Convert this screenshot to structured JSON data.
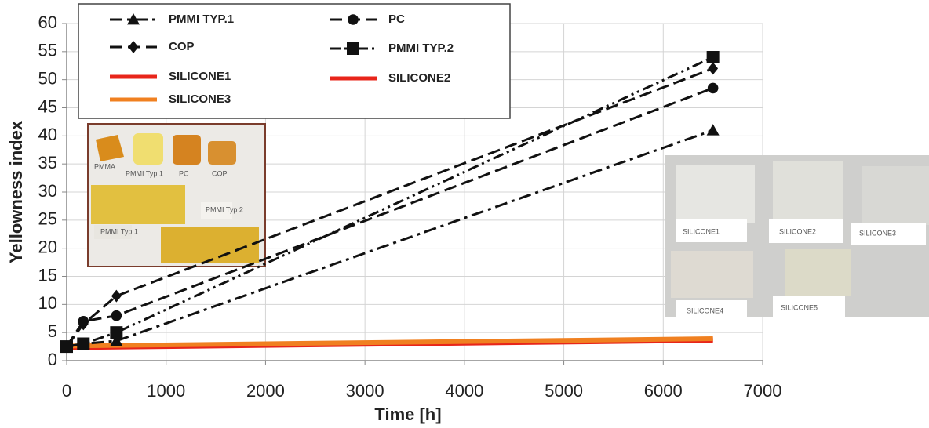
{
  "chart_data": {
    "type": "line",
    "x_label": "Time [h]",
    "y_label": "Yellowness index",
    "xlim": [
      0,
      7000
    ],
    "xticks": [
      0,
      1000,
      2000,
      3000,
      4000,
      5000,
      6000,
      7000
    ],
    "ylim": [
      0,
      60
    ],
    "yticks": [
      0,
      5,
      10,
      15,
      20,
      25,
      30,
      35,
      40,
      45,
      50,
      55,
      60
    ],
    "grid": true,
    "legend_position": "top-left",
    "series": [
      {
        "name": "PMMI TYP.1",
        "color": "#111111",
        "marker": "triangle",
        "dash": "dash-dot",
        "x": [
          0,
          168,
          500,
          6500
        ],
        "values": [
          2.5,
          3,
          3.5,
          41
        ]
      },
      {
        "name": "PC",
        "color": "#111111",
        "marker": "circle",
        "dash": "dashed",
        "x": [
          0,
          168,
          500,
          6500
        ],
        "values": [
          2.5,
          7,
          8,
          48.5
        ]
      },
      {
        "name": "COP",
        "color": "#111111",
        "marker": "diamond",
        "dash": "dashed",
        "x": [
          0,
          168,
          500,
          6500
        ],
        "values": [
          2.5,
          6.5,
          11.5,
          52
        ]
      },
      {
        "name": "PMMI TYP.2",
        "color": "#111111",
        "marker": "square",
        "dash": "dash-dot-dot",
        "x": [
          0,
          168,
          500,
          6500
        ],
        "values": [
          2.5,
          3,
          5,
          54
        ]
      },
      {
        "name": "SILICONE1",
        "color": "#e8251a",
        "marker": "none",
        "dash": "solid",
        "x": [
          0,
          6500
        ],
        "values": [
          2.5,
          3.8
        ]
      },
      {
        "name": "SILICONE2",
        "color": "#e8251a",
        "marker": "none",
        "dash": "solid",
        "x": [
          0,
          6500
        ],
        "values": [
          2.3,
          3.6
        ]
      },
      {
        "name": "SILICONE3",
        "color": "#f08020",
        "marker": "none",
        "dash": "solid",
        "x": [
          0,
          6500
        ],
        "values": [
          2.6,
          3.9
        ]
      }
    ],
    "annotations": [
      "PMMA",
      "PMMI Typ 1",
      "PC",
      "COP",
      "PMMI Typ 2",
      "PMMI Typ 1",
      "SILICONE1",
      "SILICONE2",
      "SILICONE3",
      "SILICONE4",
      "SILICONE5"
    ]
  }
}
